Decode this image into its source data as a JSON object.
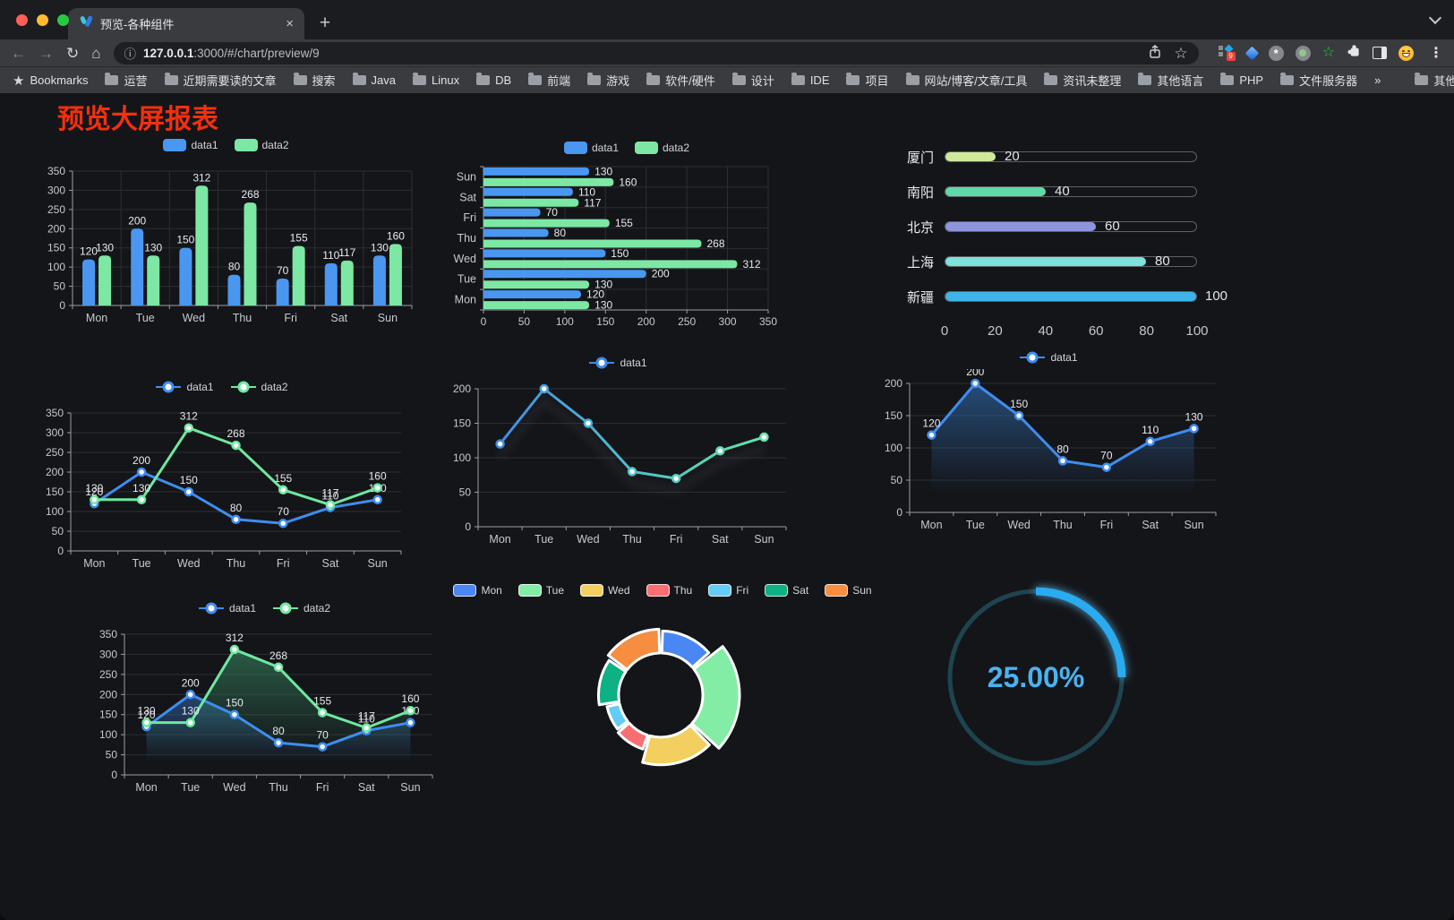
{
  "browser": {
    "tab": {
      "title": "预览-各种组件",
      "close_glyph": "×",
      "new_tab_glyph": "+"
    },
    "nav": {
      "back": "←",
      "forward": "→",
      "reload": "↻",
      "home": "⌂"
    },
    "url": {
      "info_glyph": "ⓘ",
      "host": "127.0.0.1",
      "path": ":3000/#/chart/preview/9",
      "star_glyph": "☆"
    },
    "ext_badge": "9",
    "green_star_glyph": "☆",
    "menu_glyph": "⋮",
    "bookmarks_star_glyph": "★",
    "bookmarks_label": "Bookmarks",
    "bookmarks": [
      "运营",
      "近期需要读的文章",
      "搜索",
      "Java",
      "Linux",
      "DB",
      "前端",
      "游戏",
      "软件/硬件",
      "设计",
      "IDE",
      "项目",
      "网站/博客/文章/工具",
      "资讯未整理",
      "其他语言",
      "PHP",
      "文件服务器"
    ],
    "overflow_chevron": "»",
    "other_bookmarks": "其他书签"
  },
  "page": {
    "title": "预览大屏报表",
    "title_color": "#f2300e",
    "background": "#141519"
  },
  "chart_data": [
    {
      "id": "bar-grouped",
      "type": "bar",
      "categories": [
        "Mon",
        "Tue",
        "Wed",
        "Thu",
        "Fri",
        "Sat",
        "Sun"
      ],
      "series": [
        {
          "name": "data1",
          "color": "#4a97f2",
          "values": [
            120,
            200,
            150,
            80,
            70,
            110,
            130
          ]
        },
        {
          "name": "data2",
          "color": "#7ce8a4",
          "values": [
            130,
            130,
            312,
            268,
            155,
            117,
            160
          ]
        }
      ],
      "ylim": [
        0,
        350
      ],
      "ystep": 50,
      "legend_position": "top",
      "grid": true
    },
    {
      "id": "hbar-grouped",
      "type": "hbar",
      "categories": [
        "Mon",
        "Tue",
        "Wed",
        "Thu",
        "Fri",
        "Sat",
        "Sun"
      ],
      "series": [
        {
          "name": "data1",
          "color": "#4a97f2",
          "values": [
            120,
            200,
            150,
            80,
            70,
            110,
            130
          ]
        },
        {
          "name": "data2",
          "color": "#7ce8a4",
          "values": [
            130,
            130,
            312,
            268,
            155,
            117,
            160
          ]
        }
      ],
      "xlim": [
        0,
        350
      ],
      "xstep": 50,
      "legend_position": "top"
    },
    {
      "id": "progress-bars",
      "type": "progress",
      "max": 100,
      "rows": [
        {
          "label": "厦门",
          "value": 20,
          "color": "#cfe99b"
        },
        {
          "label": "南阳",
          "value": 40,
          "color": "#5ed9a8"
        },
        {
          "label": "北京",
          "value": 60,
          "color": "#8e95dd"
        },
        {
          "label": "上海",
          "value": 80,
          "color": "#7ce2db"
        },
        {
          "label": "新疆",
          "value": 100,
          "color": "#3fb4e8"
        }
      ],
      "xticks": [
        0,
        20,
        40,
        60,
        80,
        100
      ]
    },
    {
      "id": "line-two-series",
      "type": "line",
      "categories": [
        "Mon",
        "Tue",
        "Wed",
        "Thu",
        "Fri",
        "Sat",
        "Sun"
      ],
      "series": [
        {
          "name": "data1",
          "color": "#3f8df0",
          "values": [
            120,
            200,
            150,
            80,
            70,
            110,
            130
          ]
        },
        {
          "name": "data2",
          "color": "#6fe8a0",
          "values": [
            130,
            130,
            312,
            268,
            155,
            117,
            160
          ]
        }
      ],
      "ylim": [
        0,
        350
      ],
      "ystep": 50,
      "point_labels": true
    },
    {
      "id": "line-gradient",
      "type": "line",
      "categories": [
        "Mon",
        "Tue",
        "Wed",
        "Thu",
        "Fri",
        "Sat",
        "Sun"
      ],
      "series": [
        {
          "name": "data1",
          "color": "#3f86ea",
          "gradient": [
            "#3f86ea",
            "#4fc0c8",
            "#6ae8a2"
          ],
          "values": [
            120,
            200,
            150,
            80,
            70,
            110,
            130
          ]
        }
      ],
      "ylim": [
        0,
        200
      ],
      "ystep": 50,
      "point_labels": false,
      "shadow": true
    },
    {
      "id": "line-area-blue",
      "type": "line",
      "categories": [
        "Mon",
        "Tue",
        "Wed",
        "Thu",
        "Fri",
        "Sat",
        "Sun"
      ],
      "series": [
        {
          "name": "data1",
          "color": "#3f8df0",
          "area": [
            "rgba(48,105,170,0.65)",
            "rgba(48,105,170,0)"
          ],
          "values": [
            120,
            200,
            150,
            80,
            70,
            110,
            130
          ]
        }
      ],
      "ylim": [
        0,
        200
      ],
      "ystep": 50,
      "point_labels": true
    },
    {
      "id": "line-area-two",
      "type": "line",
      "categories": [
        "Mon",
        "Tue",
        "Wed",
        "Thu",
        "Fri",
        "Sat",
        "Sun"
      ],
      "series": [
        {
          "name": "data1",
          "color": "#3f8df0",
          "area": [
            "rgba(52,110,185,0.55)",
            "rgba(52,110,185,0)"
          ],
          "values": [
            120,
            200,
            150,
            80,
            70,
            110,
            130
          ]
        },
        {
          "name": "data2",
          "color": "#6fe8a0",
          "area": [
            "rgba(58,150,105,0.55)",
            "rgba(58,150,105,0)"
          ],
          "values": [
            130,
            130,
            312,
            268,
            155,
            117,
            160
          ]
        }
      ],
      "ylim": [
        0,
        350
      ],
      "ystep": 50,
      "point_labels": true
    },
    {
      "id": "donut-week",
      "type": "donut",
      "items": [
        {
          "label": "Mon",
          "value": 120,
          "color": "#4b87f2"
        },
        {
          "label": "Tue",
          "value": 200,
          "color": "#83eda6"
        },
        {
          "label": "Wed",
          "value": 150,
          "color": "#f2cf5e"
        },
        {
          "label": "Thu",
          "value": 80,
          "color": "#f96e73"
        },
        {
          "label": "Fri",
          "value": 70,
          "color": "#63cdf5"
        },
        {
          "label": "Sat",
          "value": 110,
          "color": "#0eb183"
        },
        {
          "label": "Sun",
          "value": 130,
          "color": "#f68d40"
        }
      ]
    },
    {
      "id": "gauge-percent",
      "type": "gauge",
      "value": 25,
      "max": 100,
      "text": "25.00%",
      "color": "#29abef",
      "track_color": "#1e4450",
      "text_color": "#4ab2f0"
    }
  ]
}
